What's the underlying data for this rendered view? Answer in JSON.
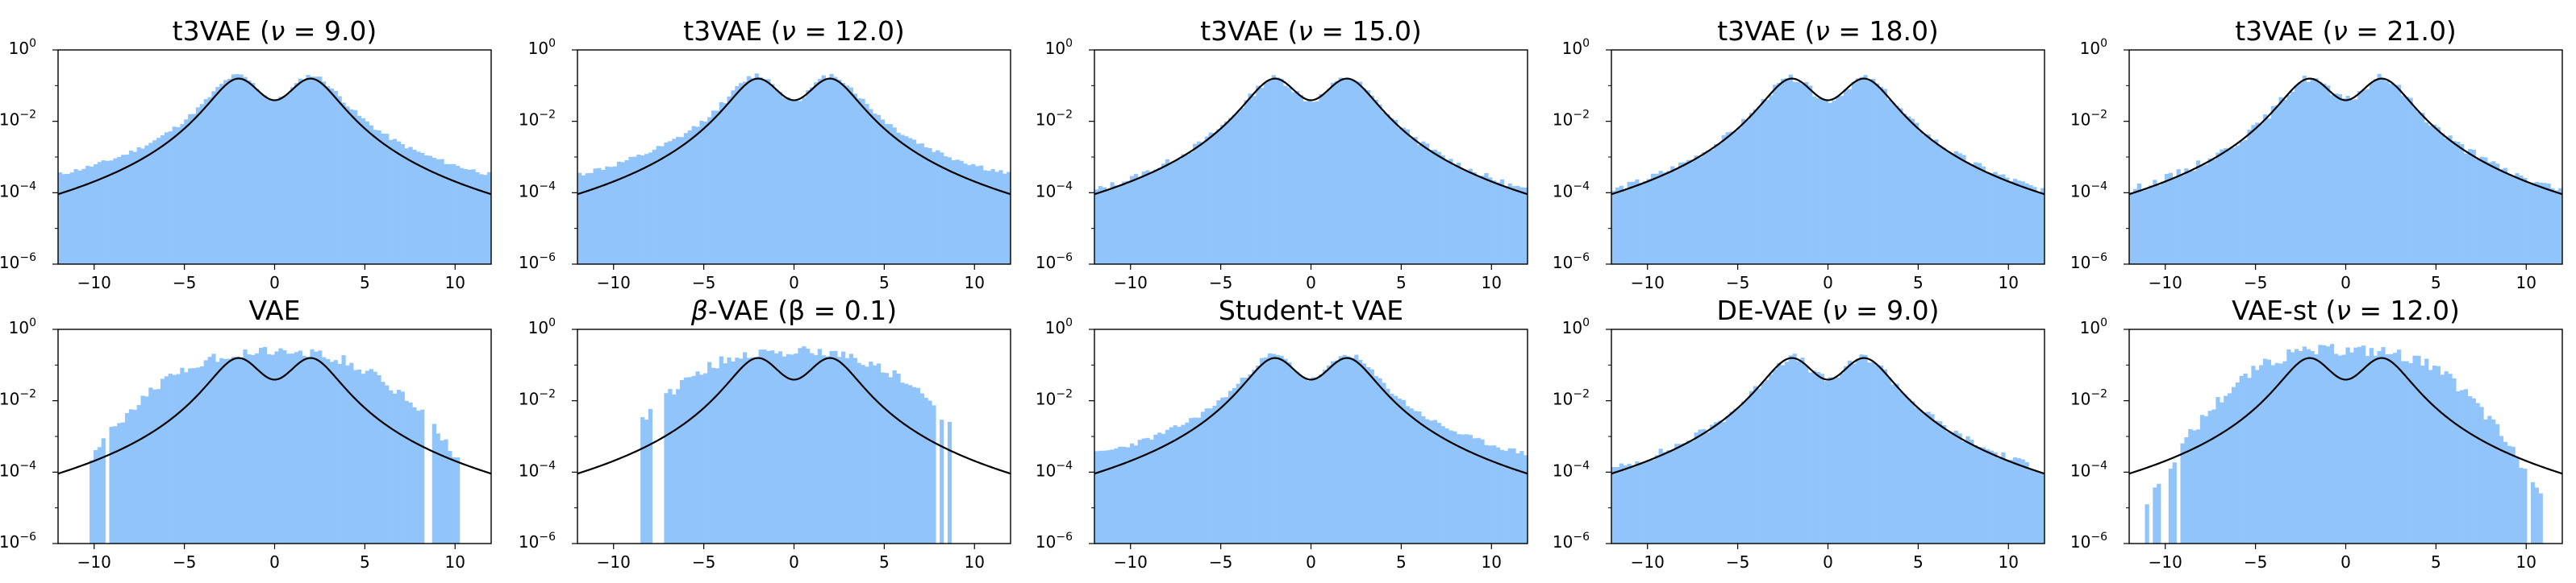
{
  "figure": {
    "background": "#ffffff",
    "bar_color": "#90c4fa",
    "curve_color": "#000000"
  },
  "chart_data": [
    {
      "type": "bar",
      "title": "t3VAE (ν = 9.0)",
      "title_parts": [
        "t3VAE (",
        "ν",
        " = 9.0)"
      ],
      "hist": {
        "left": -5.4,
        "right": -5.2,
        "noise": 0.12,
        "seed": 11
      },
      "curve": "bimodal",
      "xlim": [
        -12,
        12
      ],
      "ylim": [
        1e-06,
        1
      ],
      "yscale": "log",
      "xticks": [
        -10,
        -5,
        0,
        5,
        10
      ],
      "yticks": [
        "10",
        "10",
        "10",
        "10"
      ],
      "yexps": [
        "0",
        "-2",
        "-4",
        "-6"
      ]
    },
    {
      "type": "bar",
      "title": "t3VAE (ν = 12.0)",
      "title_parts": [
        "t3VAE (",
        "ν",
        " = 12.0)"
      ],
      "hist": {
        "left": -5.7,
        "right": -5.7,
        "noise": 0.15,
        "seed": 12
      },
      "curve": "bimodal",
      "xlim": [
        -12,
        12
      ],
      "ylim": [
        1e-06,
        1
      ],
      "yscale": "log",
      "xticks": [
        -10,
        -5,
        0,
        5,
        10
      ],
      "yticks": [
        "10",
        "10",
        "10",
        "10"
      ],
      "yexps": [
        "0",
        "-2",
        "-4",
        "-6"
      ]
    },
    {
      "type": "bar",
      "title": "t3VAE (ν = 15.0)",
      "title_parts": [
        "t3VAE (",
        "ν",
        " = 15.0)"
      ],
      "hist": {
        "left": -6.8,
        "right": -6.0,
        "noise": 0.2,
        "seed": 13
      },
      "curve": "bimodal",
      "xlim": [
        -12,
        12
      ],
      "ylim": [
        1e-06,
        1
      ],
      "yscale": "log",
      "xticks": [
        -10,
        -5,
        0,
        5,
        10
      ],
      "yticks": [
        "10",
        "10",
        "10",
        "10"
      ],
      "yexps": [
        "0",
        "-2",
        "-4",
        "-6"
      ]
    },
    {
      "type": "bar",
      "title": "t3VAE (ν = 18.0)",
      "title_parts": [
        "t3VAE (",
        "ν",
        " = 18.0)"
      ],
      "hist": {
        "left": -6.8,
        "right": -6.0,
        "noise": 0.2,
        "seed": 14
      },
      "curve": "bimodal",
      "xlim": [
        -12,
        12
      ],
      "ylim": [
        1e-06,
        1
      ],
      "yscale": "log",
      "xticks": [
        -10,
        -5,
        0,
        5,
        10
      ],
      "yticks": [
        "10",
        "10",
        "10",
        "10"
      ],
      "yexps": [
        "0",
        "-2",
        "-4",
        "-6"
      ]
    },
    {
      "type": "bar",
      "title": "t3VAE (ν = 21.0)",
      "title_parts": [
        "t3VAE (",
        "ν",
        " = 21.0)"
      ],
      "hist": {
        "left": -7.0,
        "right": -6.8,
        "noise": 0.25,
        "seed": 15
      },
      "curve": "bimodal",
      "xlim": [
        -12,
        12
      ],
      "ylim": [
        1e-06,
        1
      ],
      "yscale": "log",
      "xticks": [
        -10,
        -5,
        0,
        5,
        10
      ],
      "yticks": [
        "10",
        "10",
        "10",
        "10"
      ],
      "yexps": [
        "0",
        "-2",
        "-4",
        "-6"
      ]
    },
    {
      "type": "bar",
      "title": "VAE",
      "title_parts": [
        "VAE",
        "",
        ""
      ],
      "hist": {
        "left": -10.2,
        "right": -10.2,
        "noise": 0.3,
        "seed": 21,
        "gauss": true
      },
      "curve": "bimodal",
      "xlim": [
        -12,
        12
      ],
      "ylim": [
        1e-06,
        1
      ],
      "yscale": "log",
      "xticks": [
        -10,
        -5,
        0,
        5,
        10
      ],
      "yticks": [
        "10",
        "10",
        "10",
        "10"
      ],
      "yexps": [
        "0",
        "-2",
        "-4",
        "-6"
      ]
    },
    {
      "type": "bar",
      "title": "β-VAE (β = 0.1)",
      "title_parts": [
        "",
        "β",
        "-VAE (β = 0.1)"
      ],
      "hist": {
        "left": -9.0,
        "right": -9.0,
        "noise": 0.3,
        "seed": 22,
        "gauss": true
      },
      "curve": "bimodal",
      "xlim": [
        -12,
        12
      ],
      "ylim": [
        1e-06,
        1
      ],
      "yscale": "log",
      "xticks": [
        -10,
        -5,
        0,
        5,
        10
      ],
      "yticks": [
        "10",
        "10",
        "10",
        "10"
      ],
      "yexps": [
        "0",
        "-2",
        "-4",
        "-6"
      ]
    },
    {
      "type": "bar",
      "title": "Student-t VAE",
      "title_parts": [
        "Student-t VAE",
        "",
        ""
      ],
      "hist": {
        "left": -5.8,
        "right": -5.6,
        "noise": 0.15,
        "seed": 23
      },
      "curve": "bimodal",
      "xlim": [
        -12,
        12
      ],
      "ylim": [
        1e-06,
        1
      ],
      "yscale": "log",
      "xticks": [
        -10,
        -5,
        0,
        5,
        10
      ],
      "yticks": [
        "10",
        "10",
        "10",
        "10"
      ],
      "yexps": [
        "0",
        "-2",
        "-4",
        "-6"
      ]
    },
    {
      "type": "bar",
      "title": "DE-VAE (ν = 9.0)",
      "title_parts": [
        "DE-VAE (",
        "ν",
        " = 9.0)"
      ],
      "hist": {
        "left": -6.8,
        "right": -6.4,
        "noise": 0.25,
        "seed": 24
      },
      "curve": "bimodal",
      "xlim": [
        -12,
        12
      ],
      "ylim": [
        1e-06,
        1
      ],
      "yscale": "log",
      "xticks": [
        -10,
        -5,
        0,
        5,
        10
      ],
      "yticks": [
        "10",
        "10",
        "10",
        "10"
      ],
      "yexps": [
        "0",
        "-2",
        "-4",
        "-6"
      ]
    },
    {
      "type": "bar",
      "title": "VAE-st (ν = 12.0)",
      "title_parts": [
        "VAE-st (",
        "ν",
        " = 12.0)"
      ],
      "hist": {
        "left": -11.2,
        "right": -11.0,
        "noise": 0.35,
        "seed": 25,
        "gauss": true,
        "narrow": true
      },
      "curve": "bimodal",
      "xlim": [
        -12,
        12
      ],
      "ylim": [
        1e-06,
        1
      ],
      "yscale": "log",
      "xticks": [
        -10,
        -5,
        0,
        5,
        10
      ],
      "yticks": [
        "10",
        "10",
        "10",
        "10"
      ],
      "yexps": [
        "0",
        "-2",
        "-4",
        "-6"
      ]
    }
  ]
}
